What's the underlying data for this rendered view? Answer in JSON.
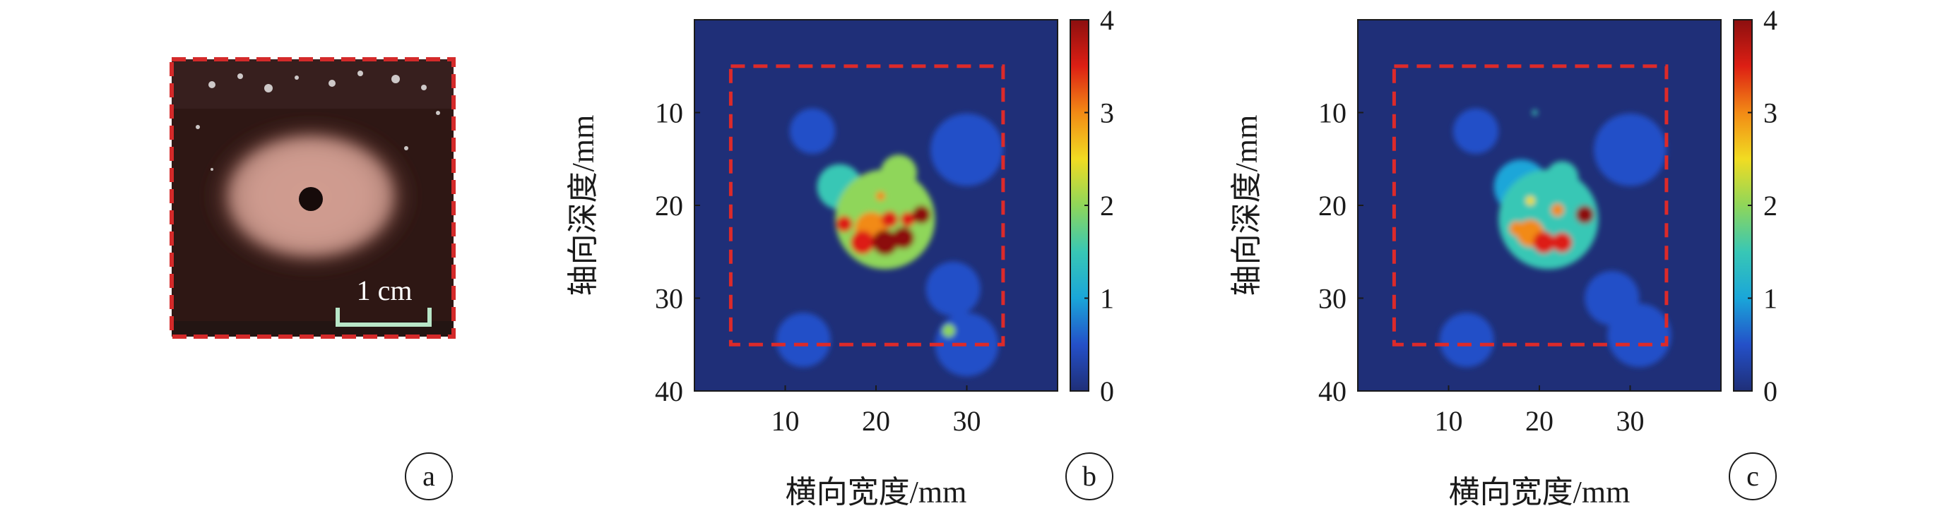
{
  "panels": {
    "a": {
      "label": "a",
      "scale_bar_text": "1 cm"
    },
    "b": {
      "label": "b"
    },
    "c": {
      "label": "c"
    }
  },
  "colors": {
    "roi_box": "#dc2a2a",
    "photo_border": "#d42a2a",
    "scale_bar": "#b8e6c8",
    "map_background": "#1f2f78",
    "colormap": [
      "#1f2f78",
      "#2450c8",
      "#1aa6d9",
      "#38c7b5",
      "#8fd65a",
      "#f1dc22",
      "#f28a15",
      "#dd1f14",
      "#8c0f0f"
    ]
  },
  "chart_data": [
    {
      "type": "heatmap",
      "panel": "b",
      "title": "",
      "xlabel": "横向宽度/mm",
      "ylabel": "轴向深度/mm",
      "xlim": [
        0,
        40
      ],
      "ylim": [
        40,
        0
      ],
      "xticks": [
        10,
        20,
        30
      ],
      "yticks": [
        10,
        20,
        30,
        40
      ],
      "colorbar": {
        "range": [
          0,
          4
        ],
        "ticks": [
          0,
          1,
          2,
          3,
          4
        ]
      },
      "roi_box_mm": {
        "x0": 4,
        "x1": 34,
        "y0": 5,
        "y1": 35
      },
      "hotspots": [
        {
          "x": 21,
          "y": 21.5,
          "value": 2.0,
          "r": 5.5
        },
        {
          "x": 16,
          "y": 18,
          "value": 1.5,
          "r": 2.5
        },
        {
          "x": 22.5,
          "y": 16.5,
          "value": 1.8,
          "r": 2
        },
        {
          "x": 19.5,
          "y": 22.5,
          "value": 3.2,
          "r": 1.8
        },
        {
          "x": 18.5,
          "y": 24,
          "value": 3.6,
          "r": 1.3
        },
        {
          "x": 21,
          "y": 24,
          "value": 3.8,
          "r": 1.4
        },
        {
          "x": 23,
          "y": 23.5,
          "value": 3.8,
          "r": 1.2
        },
        {
          "x": 16.5,
          "y": 22,
          "value": 3.5,
          "r": 0.9
        },
        {
          "x": 21.5,
          "y": 21.5,
          "value": 3.7,
          "r": 0.9
        },
        {
          "x": 23.5,
          "y": 21.5,
          "value": 3.5,
          "r": 0.8
        },
        {
          "x": 25,
          "y": 21,
          "value": 4.0,
          "r": 1.0
        },
        {
          "x": 20.5,
          "y": 19,
          "value": 3.0,
          "r": 0.5
        },
        {
          "x": 28,
          "y": 33.5,
          "value": 1.9,
          "r": 0.7
        },
        {
          "x": 28.5,
          "y": 29,
          "value": 0.7,
          "r": 3
        },
        {
          "x": 12,
          "y": 34.5,
          "value": 0.5,
          "r": 3
        },
        {
          "x": 30,
          "y": 35,
          "value": 0.45,
          "r": 3.5
        },
        {
          "x": 30,
          "y": 14,
          "value": 0.45,
          "r": 4
        },
        {
          "x": 13,
          "y": 12,
          "value": 0.35,
          "r": 2.5
        }
      ]
    },
    {
      "type": "heatmap",
      "panel": "c",
      "title": "",
      "xlabel": "横向宽度/mm",
      "ylabel": "轴向深度/mm",
      "xlim": [
        0,
        40
      ],
      "ylim": [
        40,
        0
      ],
      "xticks": [
        10,
        20,
        30
      ],
      "yticks": [
        10,
        20,
        30,
        40
      ],
      "colorbar": {
        "range": [
          0,
          4
        ],
        "ticks": [
          0,
          1,
          2,
          3,
          4
        ]
      },
      "roi_box_mm": {
        "x0": 4,
        "x1": 34,
        "y0": 5,
        "y1": 35
      },
      "hotspots": [
        {
          "x": 21,
          "y": 21.5,
          "value": 1.5,
          "r": 5.5
        },
        {
          "x": 18,
          "y": 18,
          "value": 0.9,
          "r": 3
        },
        {
          "x": 22.5,
          "y": 17,
          "value": 1.6,
          "r": 1.8
        },
        {
          "x": 19,
          "y": 23,
          "value": 2.8,
          "r": 1.5
        },
        {
          "x": 20.5,
          "y": 24,
          "value": 3.4,
          "r": 1.2
        },
        {
          "x": 22.5,
          "y": 24,
          "value": 3.6,
          "r": 1.1
        },
        {
          "x": 17.5,
          "y": 22.5,
          "value": 3.2,
          "r": 0.8
        },
        {
          "x": 22,
          "y": 20.5,
          "value": 3.2,
          "r": 0.7
        },
        {
          "x": 25,
          "y": 21,
          "value": 4.0,
          "r": 1.0
        },
        {
          "x": 19,
          "y": 19.5,
          "value": 2.6,
          "r": 0.5
        },
        {
          "x": 28,
          "y": 30,
          "value": 0.6,
          "r": 3
        },
        {
          "x": 12,
          "y": 34.5,
          "value": 0.5,
          "r": 3
        },
        {
          "x": 31,
          "y": 34,
          "value": 0.45,
          "r": 3.5
        },
        {
          "x": 30,
          "y": 14,
          "value": 0.45,
          "r": 4
        },
        {
          "x": 13,
          "y": 12,
          "value": 0.35,
          "r": 2.5
        },
        {
          "x": 19.5,
          "y": 10,
          "value": 1.5,
          "r": 0.3
        }
      ]
    }
  ]
}
